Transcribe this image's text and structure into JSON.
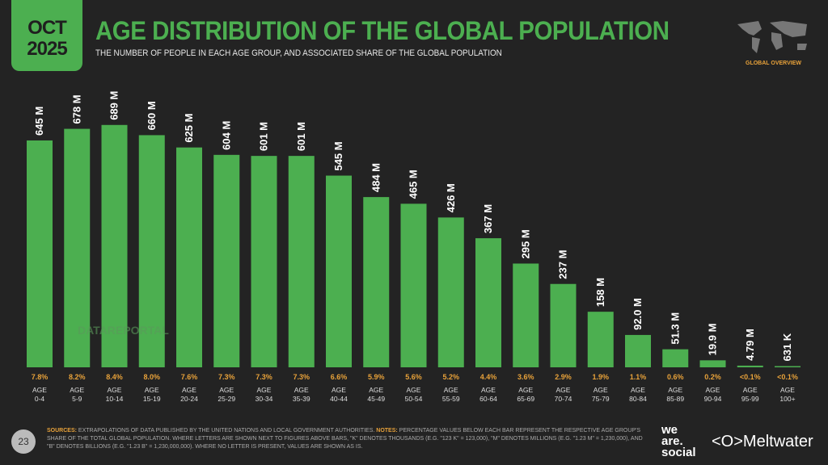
{
  "header": {
    "month": "OCT",
    "year": "2025",
    "title": "AGE DISTRIBUTION OF THE GLOBAL POPULATION",
    "subtitle": "THE NUMBER OF PEOPLE IN EACH AGE GROUP, AND ASSOCIATED SHARE OF THE GLOBAL POPULATION",
    "section": "GLOBAL OVERVIEW",
    "map_icon": "world-map-icon"
  },
  "watermark": "DATAREPORTAL",
  "chart_data": {
    "type": "bar",
    "categories": [
      "0-4",
      "5-9",
      "10-14",
      "15-19",
      "20-24",
      "25-29",
      "30-34",
      "35-39",
      "40-44",
      "45-49",
      "50-54",
      "55-59",
      "60-64",
      "65-69",
      "70-74",
      "75-79",
      "80-84",
      "85-89",
      "90-94",
      "95-99",
      "100+"
    ],
    "category_prefix": "AGE",
    "values_millions": [
      645,
      678,
      689,
      660,
      625,
      604,
      601,
      601,
      545,
      484,
      465,
      426,
      367,
      295,
      237,
      158,
      92.0,
      51.3,
      19.9,
      4.79,
      0.631
    ],
    "value_labels": [
      "645 M",
      "678 M",
      "689 M",
      "660 M",
      "625 M",
      "604 M",
      "601 M",
      "601 M",
      "545 M",
      "484 M",
      "465 M",
      "426 M",
      "367 M",
      "295 M",
      "237 M",
      "158 M",
      "92.0 M",
      "51.3 M",
      "19.9 M",
      "4.79 M",
      "631 K"
    ],
    "share_labels": [
      "7.8%",
      "8.2%",
      "8.4%",
      "8.0%",
      "7.6%",
      "7.3%",
      "7.3%",
      "7.3%",
      "6.6%",
      "5.9%",
      "5.6%",
      "5.2%",
      "4.4%",
      "3.6%",
      "2.9%",
      "1.9%",
      "1.1%",
      "0.6%",
      "0.2%",
      "<0.1%",
      "<0.1%"
    ],
    "colors": {
      "bar": "#4caf50",
      "share": "#e8a23a"
    }
  },
  "footer": {
    "page": "23",
    "sources_label": "SOURCES:",
    "sources": "EXTRAPOLATIONS OF DATA PUBLISHED BY THE UNITED NATIONS AND LOCAL GOVERNMENT AUTHORITIES.",
    "notes_label": "NOTES:",
    "notes": "PERCENTAGE VALUES BELOW EACH BAR REPRESENT THE RESPECTIVE AGE GROUP'S SHARE OF THE TOTAL GLOBAL POPULATION. WHERE LETTERS ARE SHOWN NEXT TO FIGURES ABOVE BARS, \"K\" DENOTES THOUSANDS (E.G. \"123 K\" = 123,000), \"M\" DENOTES MILLIONS (E.G. \"1.23 M\" = 1,230,000), AND \"B\" DENOTES BILLIONS (E.G. \"1.23 B\" = 1,230,000,000). WHERE NO LETTER IS PRESENT, VALUES ARE SHOWN AS IS.",
    "logo1": "we are. social",
    "logo2": "Meltwater"
  }
}
